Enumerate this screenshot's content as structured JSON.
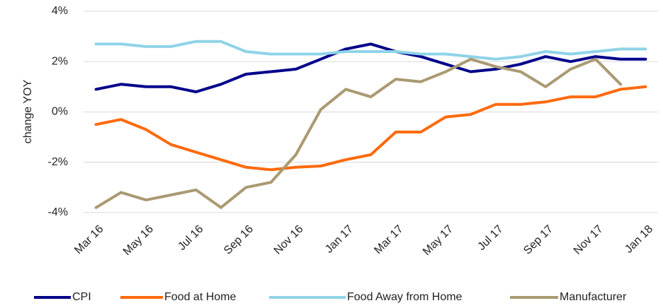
{
  "chart_data": {
    "type": "line",
    "y_label": "change YOY",
    "categories": [
      "Mar 16",
      null,
      "May 16",
      null,
      "Jul 16",
      null,
      "Sep 16",
      null,
      "Nov 16",
      null,
      "Jan 17",
      null,
      "Mar 17",
      null,
      "May 17",
      null,
      "Jul 17",
      null,
      "Sep 17",
      null,
      "Nov 17",
      null,
      "Jan 18"
    ],
    "series": [
      {
        "name": "CPI",
        "color": "#00008b",
        "values": [
          0.9,
          1.1,
          1.0,
          1.0,
          0.8,
          1.1,
          1.5,
          1.6,
          1.7,
          2.1,
          2.5,
          2.7,
          2.4,
          2.2,
          1.9,
          1.6,
          1.7,
          1.9,
          2.2,
          2.0,
          2.2,
          2.1,
          2.1
        ]
      },
      {
        "name": "Food at Home",
        "color": "#ff6a0d",
        "values": [
          -0.5,
          -0.3,
          -0.7,
          -1.3,
          -1.6,
          -1.9,
          -2.2,
          -2.3,
          -2.2,
          -2.15,
          -1.9,
          -1.7,
          -0.8,
          -0.8,
          -0.2,
          -0.1,
          0.3,
          0.3,
          0.4,
          0.6,
          0.6,
          0.9,
          1.0
        ]
      },
      {
        "name": "Food Away from Home",
        "color": "#8fd3e8",
        "values": [
          2.7,
          2.7,
          2.6,
          2.6,
          2.8,
          2.8,
          2.4,
          2.3,
          2.3,
          2.3,
          2.4,
          2.4,
          2.4,
          2.3,
          2.3,
          2.2,
          2.1,
          2.2,
          2.4,
          2.3,
          2.4,
          2.5,
          2.5
        ]
      },
      {
        "name": "Manufacturer",
        "color": "#aa9a72",
        "values": [
          -3.8,
          -3.2,
          -3.5,
          -3.3,
          -3.1,
          -3.8,
          -3.0,
          -2.8,
          -1.7,
          0.1,
          0.9,
          0.6,
          1.3,
          1.2,
          1.6,
          2.1,
          1.8,
          1.6,
          1.0,
          1.7,
          2.1,
          1.1,
          null
        ]
      }
    ],
    "ylim": [
      -4.2,
      4.0
    ],
    "yticks": [
      {
        "value": -4,
        "label": "-4%"
      },
      {
        "value": -2,
        "label": "-2%"
      },
      {
        "value": 0,
        "label": "0%"
      },
      {
        "value": 2,
        "label": "2%"
      },
      {
        "value": 4,
        "label": "4%"
      }
    ],
    "grid": true,
    "legend": "bottom"
  }
}
